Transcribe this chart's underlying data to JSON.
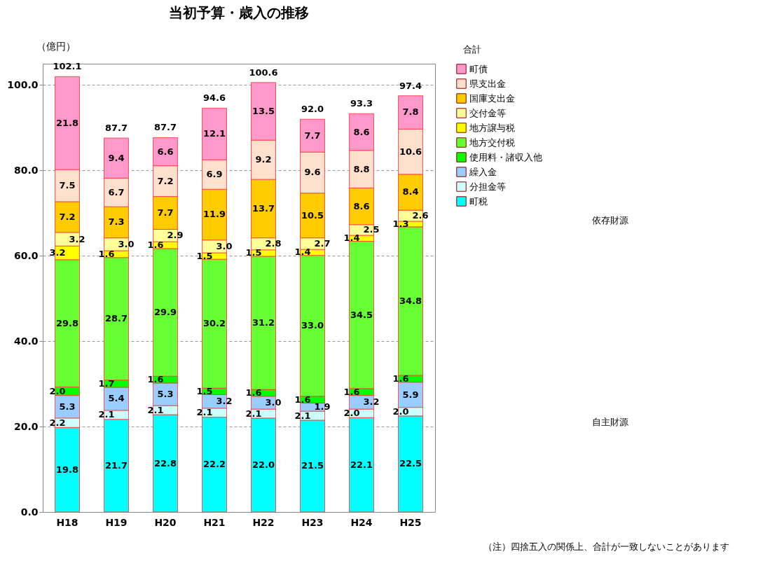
{
  "chart_data": {
    "type": "bar",
    "title": "当初予算・歳入の推移",
    "ylabel": "（億円）",
    "categories": [
      "H18",
      "H19",
      "H20",
      "H21",
      "H22",
      "H23",
      "H24",
      "H25"
    ],
    "stacked": true,
    "legend": "right",
    "grid": "y",
    "ylim": [
      0,
      105
    ],
    "yticks": [
      {
        "value": 0,
        "label": "0.0"
      },
      {
        "value": 20,
        "label": "20.0"
      },
      {
        "value": 40,
        "label": "40.0"
      },
      {
        "value": 60,
        "label": "60.0"
      },
      {
        "value": 80,
        "label": "80.0"
      },
      {
        "value": 100,
        "label": "100.0"
      }
    ],
    "series": [
      {
        "name": "町税",
        "color": "#00ffff",
        "values": [
          19.8,
          21.7,
          22.8,
          22.2,
          22.0,
          21.5,
          22.1,
          22.5
        ],
        "value_labels": [
          "19.8",
          "21.7",
          "22.8",
          "22.2",
          "22.0",
          "21.5",
          "22.1",
          "22.5"
        ]
      },
      {
        "name": "分担金等",
        "color": "#ccffff",
        "values": [
          2.2,
          2.1,
          2.1,
          2.1,
          2.1,
          2.1,
          2.0,
          2.0
        ],
        "value_labels": [
          "2.2",
          "2.1",
          "2.1",
          "2.1",
          "2.1",
          "2.1",
          "2.0",
          "2.0"
        ]
      },
      {
        "name": "繰入金",
        "color": "#99ccff",
        "values": [
          5.3,
          5.4,
          5.3,
          3.2,
          3.0,
          1.9,
          3.2,
          5.9
        ],
        "value_labels": [
          "5.3",
          "5.4",
          "5.3",
          "3.2",
          "3.0",
          "1.9",
          "3.2",
          "5.9"
        ]
      },
      {
        "name": "使用料・諸収入他",
        "color": "#00ff00",
        "values": [
          2.0,
          1.7,
          1.6,
          1.5,
          1.6,
          1.6,
          1.6,
          1.6
        ],
        "value_labels": [
          "2.0",
          "1.7",
          "1.6",
          "1.5",
          "1.6",
          "1.6",
          "1.6",
          "1.6"
        ]
      },
      {
        "name": "地方交付税",
        "color": "#66ff33",
        "values": [
          29.8,
          28.7,
          29.9,
          30.2,
          31.2,
          33.0,
          34.5,
          34.8
        ],
        "value_labels": [
          "29.8",
          "28.7",
          "29.9",
          "30.2",
          "31.2",
          "33.0",
          "34.5",
          "34.8"
        ]
      },
      {
        "name": "地方譲与税",
        "color": "#ffff00",
        "values": [
          3.2,
          1.6,
          1.6,
          1.5,
          1.5,
          1.4,
          1.4,
          1.3
        ],
        "value_labels": [
          "3.2",
          "1.6",
          "1.6",
          "1.5",
          "1.5",
          "1.4",
          "1.4",
          "1.3"
        ]
      },
      {
        "name": "交付金等",
        "color": "#ffff99",
        "values": [
          3.2,
          3.0,
          2.9,
          3.0,
          2.8,
          2.7,
          2.5,
          2.6
        ],
        "value_labels": [
          "3.2",
          "3.0",
          "2.9",
          "3.0",
          "2.8",
          "2.7",
          "2.5",
          "2.6"
        ]
      },
      {
        "name": "国庫支出金",
        "color": "#ffcc00",
        "values": [
          7.2,
          7.3,
          7.7,
          11.9,
          13.7,
          10.5,
          8.6,
          8.4
        ],
        "value_labels": [
          "7.2",
          "7.3",
          "7.7",
          "11.9",
          "13.7",
          "10.5",
          "8.6",
          "8.4"
        ]
      },
      {
        "name": "県支出金",
        "color": "#ffe0cc",
        "values": [
          7.5,
          6.7,
          7.2,
          6.9,
          9.2,
          9.6,
          8.8,
          10.6
        ],
        "value_labels": [
          "7.5",
          "6.7",
          "7.2",
          "6.9",
          "9.2",
          "9.6",
          "8.8",
          "10.6"
        ]
      },
      {
        "name": "町債",
        "color": "#ff99cc",
        "values": [
          21.8,
          9.4,
          6.6,
          12.1,
          13.5,
          7.7,
          8.6,
          7.8
        ],
        "value_labels": [
          "21.8",
          "9.4",
          "6.6",
          "12.1",
          "13.5",
          "7.7",
          "8.6",
          "7.8"
        ]
      }
    ],
    "totals": [
      "102.1",
      "87.7",
      "87.7",
      "94.6",
      "100.6",
      "92.0",
      "93.3",
      "97.4"
    ],
    "annotations": [
      "合計",
      "依存財源",
      "自主財源",
      "（注）四捨五入の関係上、合計が一致しないことがあります"
    ]
  }
}
